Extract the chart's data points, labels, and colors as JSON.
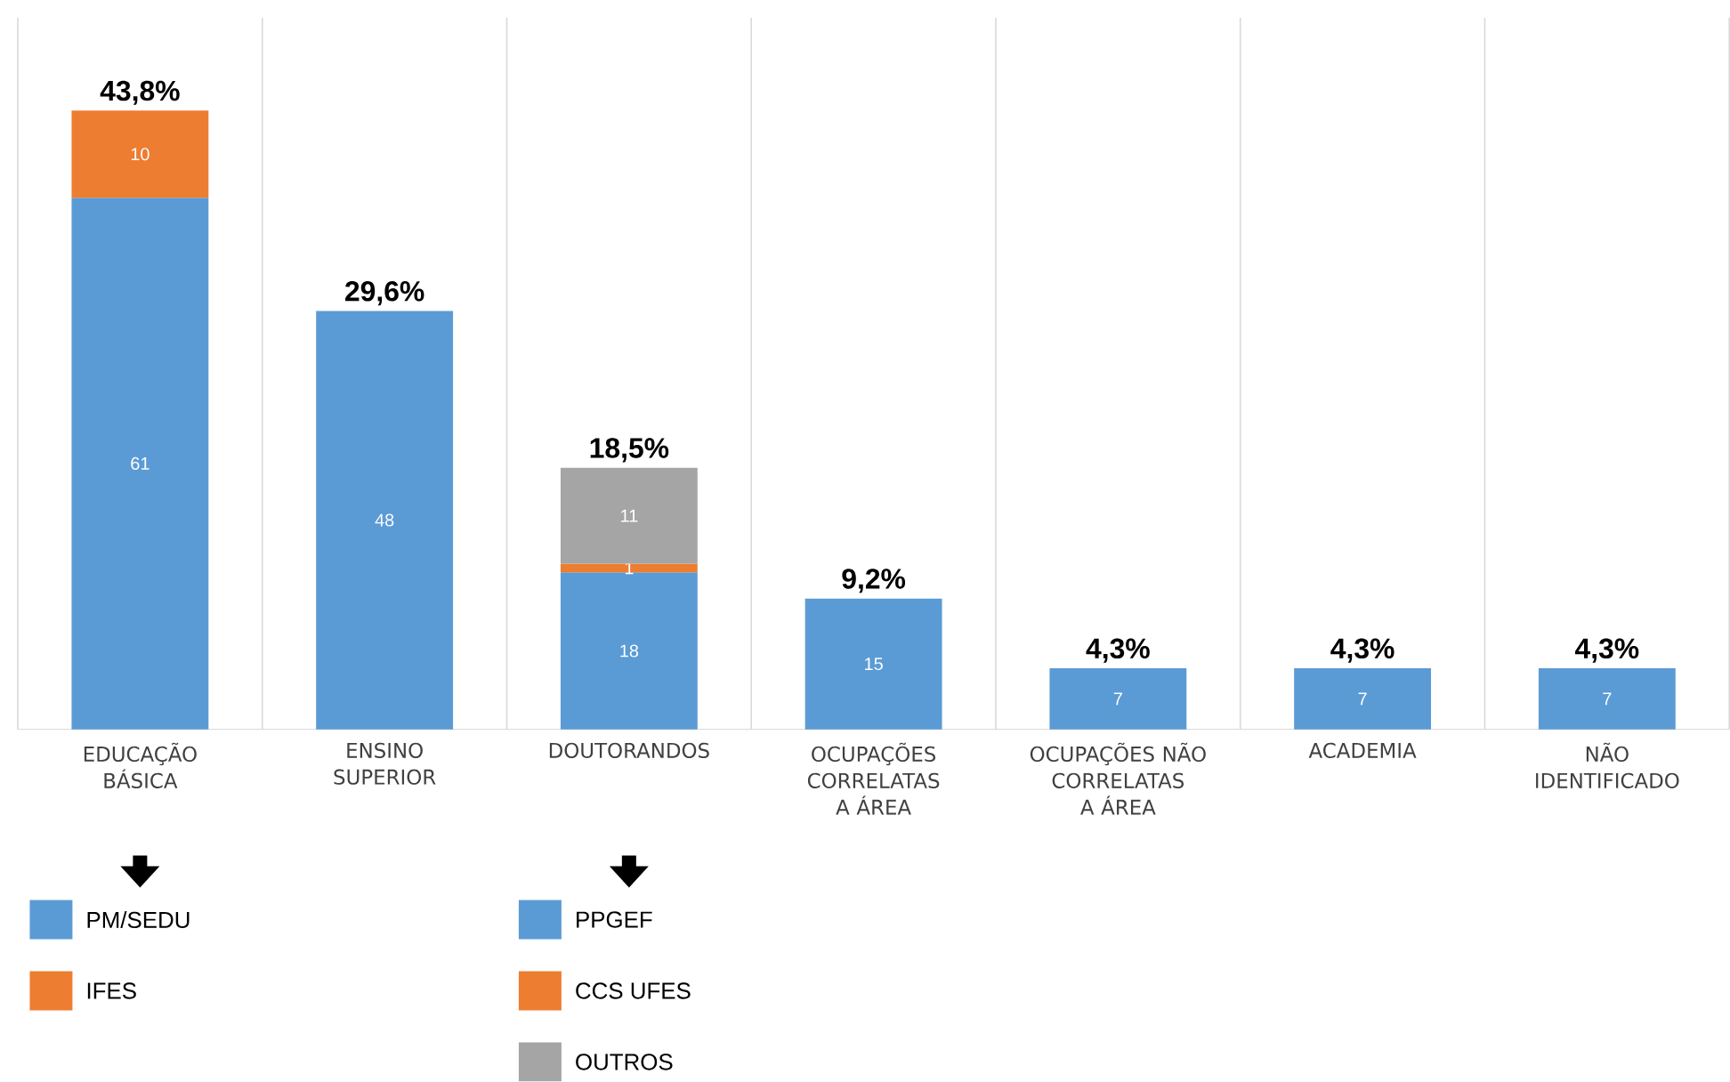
{
  "chart_data": {
    "type": "bar",
    "stacked": true,
    "data_labels": true,
    "grid": "x",
    "legend": "bottom",
    "categories": [
      "EDUCAÇÃO BÁSICA",
      "ENSINO SUPERIOR",
      "DOUTORANDOS",
      "OCUPAÇÕES CORRELATAS A ÁREA",
      "OCUPAÇÕES NÃO CORRELATAS A ÁREA",
      "ACADEMIA",
      "NÃO IDENTIFICADO"
    ],
    "series": [
      {
        "name": "PM/SEDU",
        "color": "#5b9bd5",
        "values": [
          61,
          null,
          null,
          null,
          null,
          null,
          null
        ]
      },
      {
        "name": "IFES",
        "color": "#ed7d31",
        "values": [
          10,
          null,
          null,
          null,
          null,
          null,
          null
        ]
      },
      {
        "name": "PPGEF",
        "color": "#5b9bd5",
        "values": [
          null,
          null,
          18,
          null,
          null,
          null,
          null
        ]
      },
      {
        "name": "CCS UFES",
        "color": "#ed7d31",
        "values": [
          null,
          null,
          1,
          null,
          null,
          null,
          null
        ]
      },
      {
        "name": "OUTROS",
        "color": "#a5a5a5",
        "values": [
          null,
          null,
          11,
          null,
          null,
          null,
          null
        ]
      },
      {
        "color": "#5b9bd5",
        "values": [
          null,
          48,
          null,
          15,
          7,
          7,
          7
        ]
      }
    ],
    "annotations": [
      {
        "text": "43,8%",
        "x": "EDUCAÇÃO BÁSICA",
        "y": 71
      },
      {
        "text": "29,6%",
        "x": "ENSINO SUPERIOR",
        "y": 48
      },
      {
        "text": "18,5%",
        "x": "DOUTORANDOS",
        "y": 30
      },
      {
        "text": "9,2%",
        "x": "OCUPAÇÕES CORRELATAS A ÁREA",
        "y": 15
      },
      {
        "text": "4,3%",
        "x": "OCUPAÇÕES NÃO CORRELATAS A ÁREA",
        "y": 7
      },
      {
        "text": "4,3%",
        "x": "ACADEMIA",
        "y": 7
      },
      {
        "text": "4,3%",
        "x": "NÃO IDENTIFICADO",
        "y": 7
      }
    ]
  }
}
